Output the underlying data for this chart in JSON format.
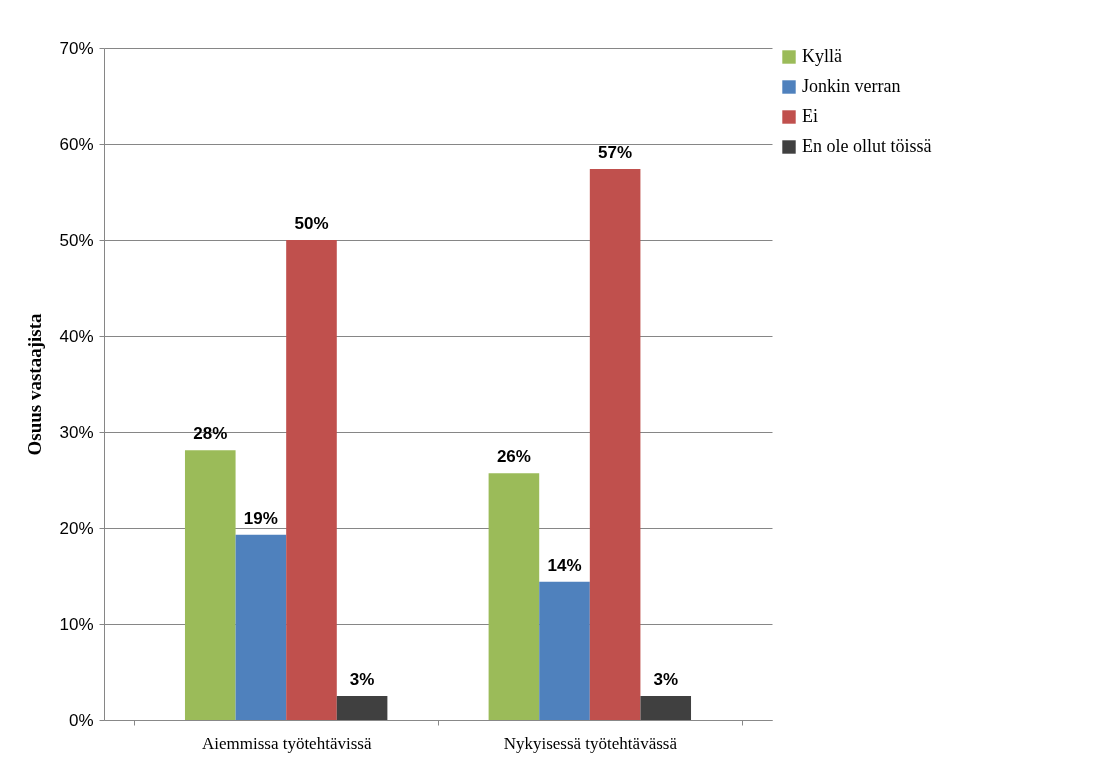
{
  "chart_data": {
    "type": "bar",
    "ylabel": "Osuus  vastaajista",
    "categories": [
      "Aiemmissa työtehtävissä",
      "Nykyisessä työtehtävässä"
    ],
    "series": [
      {
        "name": "Kyllä",
        "color": "#9bbb59",
        "values": [
          28.1,
          25.7
        ],
        "value_labels": [
          "28%",
          "26%"
        ]
      },
      {
        "name": "Jonkin verran",
        "color": "#4f81bd",
        "values": [
          19.3,
          14.4
        ],
        "value_labels": [
          "19%",
          "14%"
        ]
      },
      {
        "name": "Ei",
        "color": "#c0504d",
        "values": [
          50.0,
          57.4
        ],
        "value_labels": [
          "50%",
          "57%"
        ]
      },
      {
        "name": "En ole ollut töissä",
        "color": "#404040",
        "values": [
          2.5,
          2.5
        ],
        "value_labels": [
          "3%",
          "3%"
        ]
      }
    ],
    "ylim": [
      0,
      70
    ],
    "yticks": [
      {
        "value": 0,
        "label": "0%"
      },
      {
        "value": 10,
        "label": "10%"
      },
      {
        "value": 20,
        "label": "20%"
      },
      {
        "value": 30,
        "label": "30%"
      },
      {
        "value": 40,
        "label": "40%"
      },
      {
        "value": 50,
        "label": "50%"
      },
      {
        "value": 60,
        "label": "60%"
      },
      {
        "value": 70,
        "label": "70%"
      }
    ],
    "grid": "y",
    "legend": "right"
  }
}
